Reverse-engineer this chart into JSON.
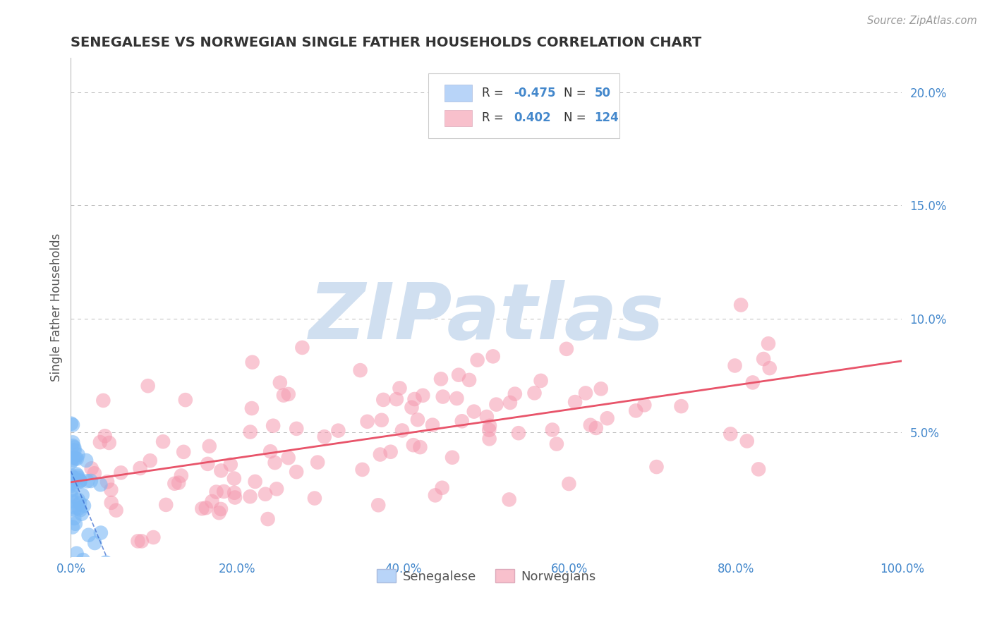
{
  "title": "SENEGALESE VS NORWEGIAN SINGLE FATHER HOUSEHOLDS CORRELATION CHART",
  "source": "Source: ZipAtlas.com",
  "ylabel": "Single Father Households",
  "xlim": [
    0,
    1.0
  ],
  "ylim": [
    -0.005,
    0.215
  ],
  "xtick_vals": [
    0.0,
    0.2,
    0.4,
    0.6,
    0.8,
    1.0
  ],
  "xtick_labels": [
    "0.0%",
    "20.0%",
    "40.0%",
    "60.0%",
    "80.0%",
    "100.0%"
  ],
  "ytick_vals": [
    0.05,
    0.1,
    0.15,
    0.2
  ],
  "ytick_labels": [
    "5.0%",
    "10.0%",
    "15.0%",
    "20.0%"
  ],
  "senegalese_R": -0.475,
  "senegalese_N": 50,
  "norwegian_R": 0.402,
  "norwegian_N": 124,
  "dot_color_senegalese": "#7ab8f5",
  "dot_color_norwegian": "#f59ab0",
  "line_color_senegalese": "#3366cc",
  "line_color_norwegian": "#e8546a",
  "legend_color_senegalese": "#b8d4f8",
  "legend_color_norwegian": "#f8c0cc",
  "watermark": "ZIPatlas",
  "watermark_color": "#d0dff0",
  "background_color": "#ffffff",
  "grid_color": "#bbbbbb",
  "title_color": "#333333",
  "axis_label_color": "#555555",
  "tick_label_color": "#4488cc",
  "seed": 42
}
